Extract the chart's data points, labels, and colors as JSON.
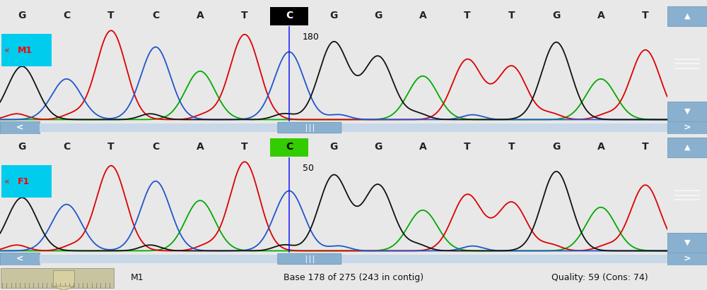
{
  "background_color": "#e8e8e8",
  "panel_bg": "#ffffff",
  "top_panel": {
    "label": "M1",
    "label_color": "#ff0000",
    "label_bg": "#00ccee",
    "sequence": [
      "G",
      "C",
      "T",
      "C",
      "A",
      "T",
      "C",
      "G",
      "G",
      "A",
      "T",
      "T",
      "G",
      "A",
      "T"
    ],
    "highlight_index": 6,
    "highlight_bg": "#000000",
    "highlight_fg": "#ffffff",
    "position_label": "180",
    "cursor_color": "#0000ff"
  },
  "bottom_panel": {
    "label": "F1",
    "label_color": "#ff0000",
    "label_bg": "#00ccee",
    "sequence": [
      "G",
      "C",
      "T",
      "C",
      "A",
      "T",
      "C",
      "G",
      "G",
      "A",
      "T",
      "T",
      "G",
      "A",
      "T"
    ],
    "highlight_index": 6,
    "highlight_bg": "#33cc00",
    "highlight_fg": "#000000",
    "position_label": "50",
    "cursor_color": "#0000ff"
  },
  "status_bar": {
    "bg": "#d8cc9a",
    "text_left": "M1",
    "text_center": "Base 178 of 275 (243 in contig)",
    "text_right": "Quality: 59 (Cons: 74)"
  },
  "btn_color": "#8ab0d0",
  "btn_edge": "#6090b0",
  "scrollbar_track": "#ddeeff",
  "scrollbar_thumb": "#8ab0d0",
  "ch_colors": {
    "black": "#111111",
    "red": "#dd0000",
    "blue": "#2255cc",
    "green": "#00aa00"
  },
  "top_peaks": {
    "G": [
      0,
      7,
      8,
      12
    ],
    "C": [
      1,
      3,
      6
    ],
    "T": [
      2,
      5,
      10,
      11,
      14
    ],
    "A": [
      4,
      9,
      13
    ]
  },
  "bot_peaks": {
    "G": [
      0,
      7,
      8,
      12
    ],
    "C": [
      1,
      3,
      6
    ],
    "T": [
      2,
      5,
      10,
      11,
      14
    ],
    "A": [
      4,
      9,
      13
    ]
  }
}
